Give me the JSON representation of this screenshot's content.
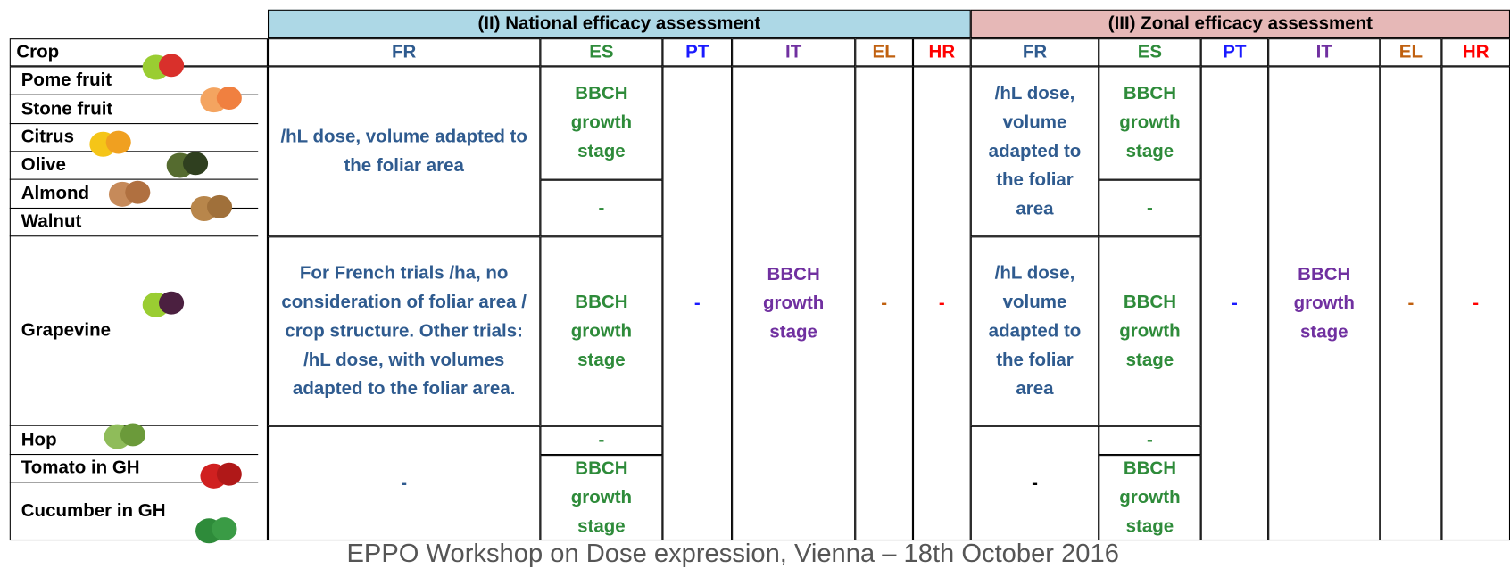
{
  "header": {
    "national": "(II) National efficacy assessment",
    "zonal": "(III) Zonal efficacy assessment",
    "crop": "Crop",
    "columns": [
      {
        "label": "FR",
        "color": "#2f5b8f"
      },
      {
        "label": "ES",
        "color": "#2e8b3a"
      },
      {
        "label": "PT",
        "color": "#1a1aff"
      },
      {
        "label": "IT",
        "color": "#7030a0"
      },
      {
        "label": "EL",
        "color": "#c0600f"
      },
      {
        "label": "HR",
        "color": "#ff0000"
      }
    ]
  },
  "crops": [
    "Pome fruit",
    "Stone fruit",
    "Citrus",
    "Olive",
    "Almond",
    "Walnut",
    "Grapevine",
    "Hop",
    "Tomato in GH",
    "Cucumber in GH"
  ],
  "national": {
    "cells": [
      [
        "/hL dose, volume adapted to the foliar area",
        "For French trials /ha, no consideration of foliar area / crop structure. Other trials: /hL dose, with volumes adapted to the foliar area.",
        "-"
      ],
      [
        "BBCH growth stage",
        "-",
        "BBCH growth stage",
        "-",
        "BBCH growth stage"
      ],
      [
        "-"
      ],
      [
        "BBCH growth stage"
      ],
      [
        "-"
      ],
      [
        "-"
      ]
    ]
  },
  "zonal": {
    "cells": [
      [
        "/hL dose, volume adapted to the foliar area",
        "/hL dose, volume adapted to the foliar area",
        "-"
      ],
      [
        "BBCH growth stage",
        "-",
        "BBCH growth stage",
        "-",
        "BBCH growth stage"
      ],
      [
        "-"
      ],
      [
        "BBCH growth stage"
      ],
      [
        "-"
      ],
      [
        "-"
      ]
    ]
  },
  "footer": "EPPO Workshop on Dose expression, Vienna – 18th October 2016"
}
